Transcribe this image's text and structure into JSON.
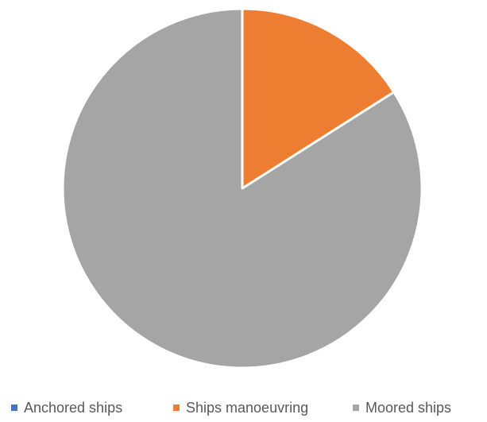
{
  "chart_data": {
    "type": "pie",
    "title": "",
    "start_angle_deg": 0,
    "direction": "clockwise",
    "legend_position": "bottom",
    "slices": [
      {
        "label": "Anchored ships",
        "value": 0,
        "color": "#4472C4"
      },
      {
        "label": "Ships manoeuvring",
        "value": 16,
        "color": "#ED7D31"
      },
      {
        "label": "Moored ships",
        "value": 84,
        "color": "#A5A5A5"
      }
    ]
  }
}
